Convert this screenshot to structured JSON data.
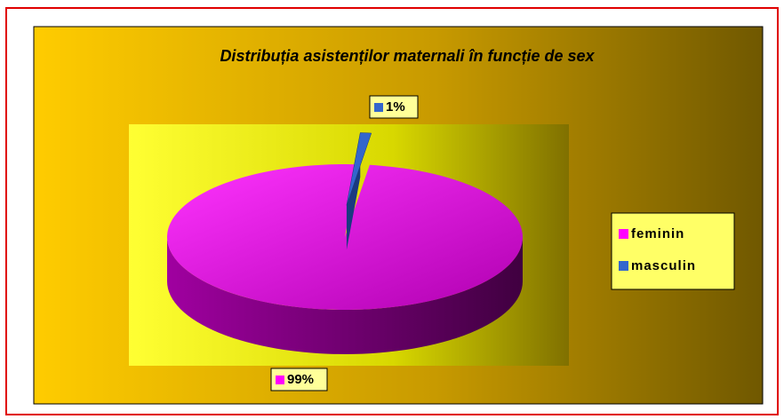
{
  "chart_data": {
    "type": "pie",
    "title": "Distribuția asistenților maternali în funcție de sex",
    "categories": [
      "feminin",
      "masculin"
    ],
    "values": [
      99,
      1
    ],
    "value_labels": [
      "99%",
      "1%"
    ],
    "colors": [
      "#ff00ff",
      "#3366cc"
    ],
    "legend": "right"
  }
}
